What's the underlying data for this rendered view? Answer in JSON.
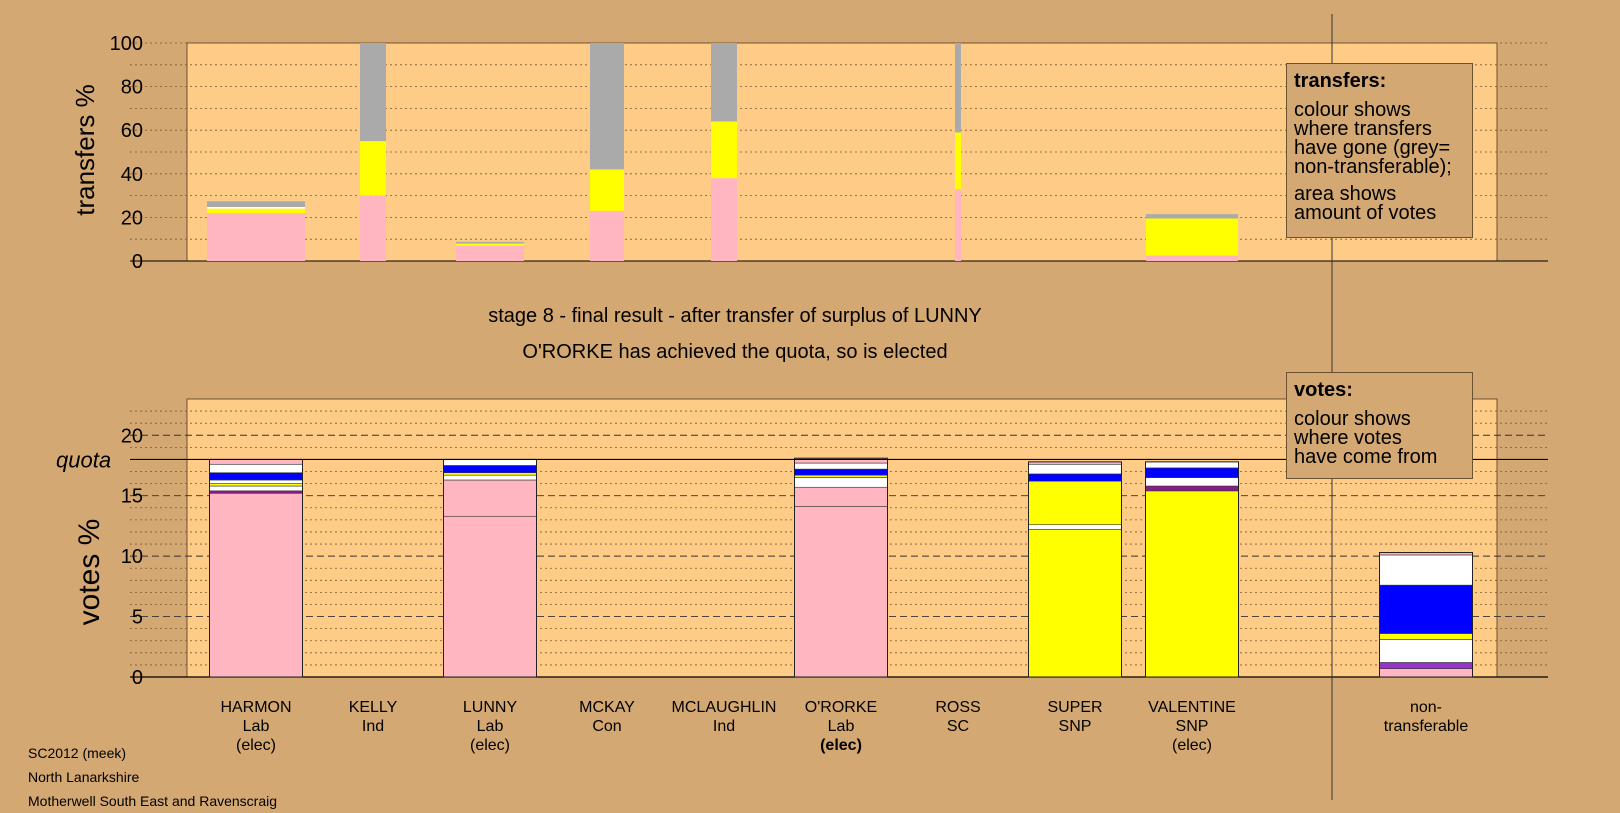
{
  "chart_data": [
    {
      "type": "bar",
      "panel": "transfers",
      "ylabel": "transfers %",
      "ylim": [
        0,
        100
      ],
      "yticks": [
        0,
        20,
        40,
        60,
        80,
        100
      ],
      "grid": true,
      "candidates": [
        "HARMON",
        "KELLY",
        "LUNNY",
        "MCKAY",
        "MCLAUGHLIN",
        "O'RORKE",
        "ROSS",
        "SUPER",
        "VALENTINE"
      ],
      "bars": [
        {
          "candidate": "HARMON",
          "segments": [
            {
              "color": "#ffb6c1",
              "value": 22
            },
            {
              "color": "#ffff00",
              "value": 2
            },
            {
              "color": "#ffffff",
              "value": 0.8
            },
            {
              "color": "#aaaaaa",
              "value": 2.6
            }
          ]
        },
        {
          "candidate": "KELLY",
          "segments": [
            {
              "color": "#ffb6c1",
              "value": 30
            },
            {
              "color": "#ffff00",
              "value": 25
            },
            {
              "color": "#aaaaaa",
              "value": 45
            }
          ]
        },
        {
          "candidate": "LUNNY",
          "segments": [
            {
              "color": "#ffb6c1",
              "value": 7
            },
            {
              "color": "#ffff00",
              "value": 1
            },
            {
              "color": "#aaaaaa",
              "value": 0.8
            }
          ]
        },
        {
          "candidate": "MCKAY",
          "segments": [
            {
              "color": "#ffb6c1",
              "value": 23
            },
            {
              "color": "#ffff00",
              "value": 19
            },
            {
              "color": "#aaaaaa",
              "value": 58
            }
          ]
        },
        {
          "candidate": "MCLAUGHLIN",
          "segments": [
            {
              "color": "#ffb6c1",
              "value": 38
            },
            {
              "color": "#ffff00",
              "value": 26
            },
            {
              "color": "#aaaaaa",
              "value": 36
            }
          ]
        },
        {
          "candidate": "ROSS",
          "segments": [
            {
              "color": "#ffb6c1",
              "value": 33
            },
            {
              "color": "#ffff00",
              "value": 26
            },
            {
              "color": "#aaaaaa",
              "value": 41
            }
          ]
        },
        {
          "candidate": "VALENTINE",
          "segments": [
            {
              "color": "#ffb6c1",
              "value": 2.5
            },
            {
              "color": "#ffff00",
              "value": 17
            },
            {
              "color": "#aaaaaa",
              "value": 2
            }
          ]
        }
      ]
    },
    {
      "type": "bar",
      "panel": "votes",
      "ylabel": "votes %",
      "ylim": [
        0,
        23
      ],
      "yticks": [
        0,
        5,
        10,
        15,
        20
      ],
      "quota": 18.0,
      "quota_label": "quota",
      "grid": true,
      "bars": [
        {
          "candidate": "HARMON",
          "segments": [
            {
              "color": "#ffb6c1",
              "value": 15.2
            },
            {
              "color": "#8b1a8b",
              "value": 0.2
            },
            {
              "color": "#ffffff",
              "value": 0.4
            },
            {
              "color": "#ffff00",
              "value": 0.2
            },
            {
              "color": "#ffffff",
              "value": 0.3
            },
            {
              "color": "#0000ff",
              "value": 0.6
            },
            {
              "color": "#ffffff",
              "value": 0.7
            },
            {
              "color": "#ffb6c1",
              "value": 0.4
            }
          ]
        },
        {
          "candidate": "LUNNY",
          "segments": [
            {
              "color": "#ffb6c1",
              "value": 13.3
            },
            {
              "color": "#ffb6c1",
              "value": 3.0
            },
            {
              "color": "#ffffff",
              "value": 0.4
            },
            {
              "color": "#ffff00",
              "value": 0.2
            },
            {
              "color": "#0000ff",
              "value": 0.6
            },
            {
              "color": "#ffffff",
              "value": 0.5
            }
          ]
        },
        {
          "candidate": "O'RORKE",
          "segments": [
            {
              "color": "#ffb6c1",
              "value": 14.1
            },
            {
              "color": "#ffb6c1",
              "value": 1.6
            },
            {
              "color": "#ffffff",
              "value": 0.8
            },
            {
              "color": "#ffff00",
              "value": 0.2
            },
            {
              "color": "#0000ff",
              "value": 0.5
            },
            {
              "color": "#ffffff",
              "value": 0.5
            },
            {
              "color": "#ffb6c1",
              "value": 0.4
            }
          ]
        },
        {
          "candidate": "SUPER",
          "segments": [
            {
              "color": "#ffff00",
              "value": 12.2
            },
            {
              "color": "#ffffff",
              "value": 0.4
            },
            {
              "color": "#ffff00",
              "value": 3.6
            },
            {
              "color": "#0000ff",
              "value": 0.6
            },
            {
              "color": "#ffffff",
              "value": 0.8
            },
            {
              "color": "#ffb6c1",
              "value": 0.2
            }
          ]
        },
        {
          "candidate": "VALENTINE",
          "segments": [
            {
              "color": "#ffff00",
              "value": 15.4
            },
            {
              "color": "#8b1a8b",
              "value": 0.4
            },
            {
              "color": "#ffffff",
              "value": 0.7
            },
            {
              "color": "#0000ff",
              "value": 0.8
            },
            {
              "color": "#ffffff",
              "value": 0.5
            }
          ]
        },
        {
          "candidate": "non-transferable",
          "segments": [
            {
              "color": "#ffb6c1",
              "value": 0.7
            },
            {
              "color": "#9932cc",
              "value": 0.5
            },
            {
              "color": "#ffffff",
              "value": 1.9
            },
            {
              "color": "#ffff00",
              "value": 0.5
            },
            {
              "color": "#0000ff",
              "value": 4.0
            },
            {
              "color": "#ffffff",
              "value": 2.5
            },
            {
              "color": "#ffb6c1",
              "value": 0.2
            }
          ]
        }
      ]
    }
  ],
  "candidates": [
    {
      "name": "HARMON",
      "party": "Lab",
      "note": "(elec)"
    },
    {
      "name": "KELLY",
      "party": "Ind",
      "note": ""
    },
    {
      "name": "LUNNY",
      "party": "Lab",
      "note": "(elec)"
    },
    {
      "name": "MCKAY",
      "party": "Con",
      "note": ""
    },
    {
      "name": "MCLAUGHLIN",
      "party": "Ind",
      "note": ""
    },
    {
      "name": "O'RORKE",
      "party": "Lab",
      "note": "(elec)",
      "bold_note": true
    },
    {
      "name": "ROSS",
      "party": "SC",
      "note": ""
    },
    {
      "name": "SUPER",
      "party": "SNP",
      "note": ""
    },
    {
      "name": "VALENTINE",
      "party": "SNP",
      "note": "(elec)"
    }
  ],
  "nontransferable_label": [
    "non-",
    "transferable"
  ],
  "stage_title": "stage 8 - final result - after transfer of surplus of LUNNY",
  "stage_subtitle": "O'RORKE has achieved the quota, so is elected",
  "legend_transfers": {
    "title": "transfers:",
    "lines1": [
      "colour shows",
      "where transfers",
      "have gone (grey=",
      "non-transferable);"
    ],
    "lines2": [
      "area shows",
      "amount of votes"
    ]
  },
  "legend_votes": {
    "title": "votes:",
    "lines": [
      "colour shows",
      "where votes",
      "have come from"
    ]
  },
  "footer": {
    "line1": "SC2012 (meek)",
    "line2": "North Lanarkshire",
    "line3": "Motherwell South East and Ravenscraig"
  },
  "colors": {
    "background": "#d4a872",
    "plot_background": "#ffcc88",
    "labour": "#ffb6c1",
    "snp": "#ffff00",
    "nontransferable": "#aaaaaa"
  }
}
